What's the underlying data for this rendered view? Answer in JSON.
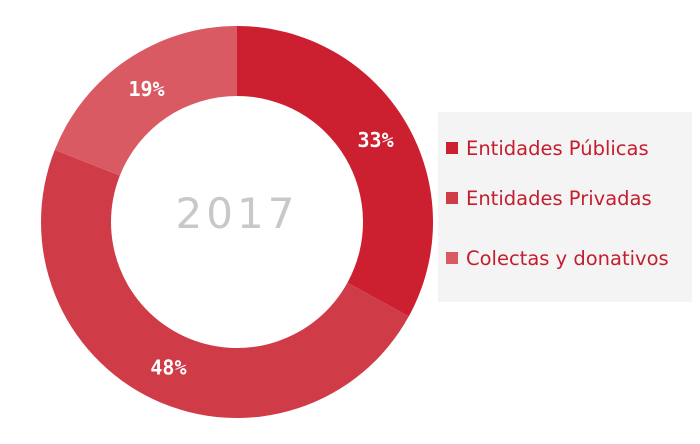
{
  "chart_data": {
    "type": "pie",
    "donut": true,
    "center_text": "2017",
    "categories": [
      "Entidades Públicas",
      "Entidades Privadas",
      "Colectas y donativos"
    ],
    "values": [
      33,
      48,
      19
    ],
    "value_labels": [
      "33%",
      "48%",
      "19%"
    ],
    "colors": [
      "#cc1f30",
      "#d03b48",
      "#d95a63"
    ],
    "legend_position": "right",
    "start_angle_deg": 0,
    "direction": "clockwise"
  }
}
